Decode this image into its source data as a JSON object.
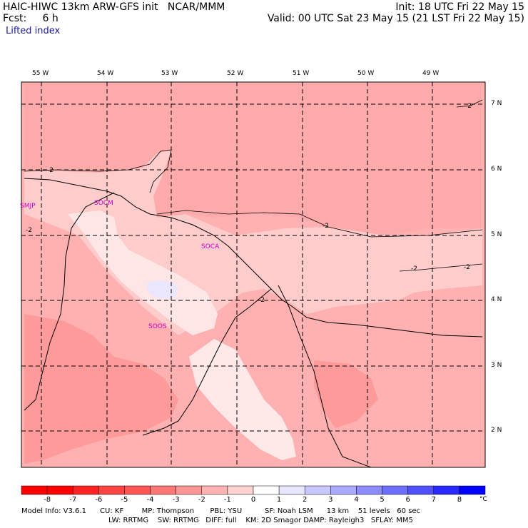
{
  "header": {
    "model": "HAIC-HIWC 13km ARW-GFS init   NCAR/MMM",
    "fcst": "Fcst:     6 h",
    "field": "Lifted index",
    "init": "Init: 18 UTC Fri 22 May 15",
    "valid": "Valid: 00 UTC Sat 23 May 15 (21 LST Fri 22 May 15)"
  },
  "lon_labels": [
    "55 W",
    "54 W",
    "53 W",
    "52 W",
    "51 W",
    "50 W",
    "49 W"
  ],
  "lat_labels": [
    "7 N",
    "6 N",
    "5 N",
    "4 N",
    "3 N",
    "2 N"
  ],
  "stations": [
    "SMJP",
    "SOCM",
    "SOCA",
    "SOOS"
  ],
  "contour_labels": [
    "-2",
    "-2",
    "-2",
    "-2",
    "-2",
    "-2",
    "-2"
  ],
  "colorbar": {
    "labels": [
      "-8",
      "-7",
      "-6",
      "-5",
      "-4",
      "-3",
      "-2",
      "-1",
      "0",
      "1",
      "2",
      "3",
      "4",
      "5",
      "6",
      "7",
      "8"
    ],
    "unit": "°C",
    "colors": [
      "#ff0000",
      "#ff2222",
      "#ff4444",
      "#ff5555",
      "#ff7777",
      "#ff9696",
      "#ffb4b4",
      "#ffd2d2",
      "#ffffff",
      "#e6e6ff",
      "#c8c8ff",
      "#aaaaff",
      "#8c8cff",
      "#6e6eff",
      "#5050ff",
      "#2828ff",
      "#0000ff"
    ]
  },
  "model_info": {
    "line1": "Model Info: V3.6.1      CU: KF        MP: Thompson       PBL: YSU          SF: Noah LSM      13 km    51 levels   60 sec",
    "line2": "LW: RRTMG    SW: RRTMG   DIFF: full    KM: 2D Smagor DAMP: Rayleigh3   SFLAY: MM5"
  }
}
